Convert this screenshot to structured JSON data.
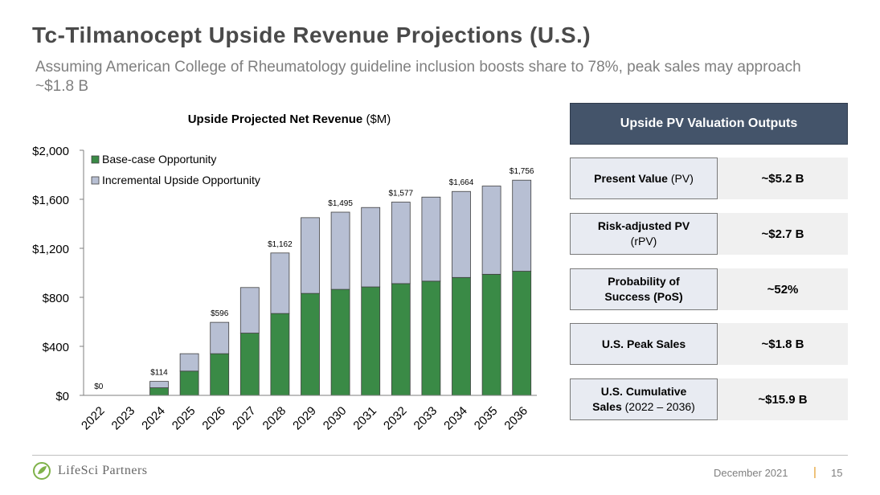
{
  "slide": {
    "title": "Tc-Tilmanocept Upside Revenue Projections (U.S.)",
    "subtitle": "Assuming American College of Rheumatology guideline inclusion boosts share to 78%, peak sales may approach ~$1.8 B"
  },
  "chart_data": {
    "type": "bar",
    "stacked": true,
    "title_bold": "Upside Projected Net Revenue",
    "title_unit": " ($M)",
    "categories": [
      "2022",
      "2023",
      "2024",
      "2025",
      "2026",
      "2027",
      "2028",
      "2029",
      "2030",
      "2031",
      "2032",
      "2033",
      "2034",
      "2035",
      "2036"
    ],
    "series": [
      {
        "name": "Base-case Opportunity",
        "color": "#3a8a46",
        "values": [
          0,
          0,
          62,
          198,
          340,
          508,
          668,
          832,
          865,
          885,
          912,
          932,
          962,
          988,
          1013
        ]
      },
      {
        "name": "Incremental Upside Opportunity",
        "color": "#b7bfd3",
        "values": [
          0,
          0,
          52,
          142,
          256,
          372,
          494,
          618,
          630,
          648,
          665,
          686,
          702,
          720,
          743
        ]
      }
    ],
    "totals": [
      0,
      0,
      114,
      340,
      596,
      880,
      1162,
      1450,
      1495,
      1533,
      1577,
      1618,
      1664,
      1708,
      1756
    ],
    "data_labels": [
      {
        "category": "2022",
        "text": "$0"
      },
      {
        "category": "2024",
        "text": "$114"
      },
      {
        "category": "2026",
        "text": "$596"
      },
      {
        "category": "2028",
        "text": "$1,162"
      },
      {
        "category": "2030",
        "text": "$1,495"
      },
      {
        "category": "2032",
        "text": "$1,577"
      },
      {
        "category": "2034",
        "text": "$1,664"
      },
      {
        "category": "2036",
        "text": "$1,756"
      }
    ],
    "yticks": [
      {
        "value": 0,
        "label": "$0"
      },
      {
        "value": 400,
        "label": "$400"
      },
      {
        "value": 800,
        "label": "$800"
      },
      {
        "value": 1200,
        "label": "$1,200"
      },
      {
        "value": 1600,
        "label": "$1,600"
      },
      {
        "value": 2000,
        "label": "$2,000"
      }
    ],
    "ylim": [
      0,
      2000
    ],
    "legend_position": "top-left",
    "grid": false
  },
  "valuation": {
    "header": "Upside PV Valuation Outputs",
    "rows": [
      {
        "label_bold": "Present Value",
        "label_rest": " (PV)",
        "value": "~$5.2 B"
      },
      {
        "label_bold": "Risk-adjusted PV",
        "label_line2": "(rPV)",
        "value": "~$2.7 B"
      },
      {
        "label_bold": "Probability of",
        "label_line2_bold": "Success (PoS)",
        "value": "~52%"
      },
      {
        "label_bold": "U.S. Peak Sales",
        "value": "~$1.8 B"
      },
      {
        "label_bold": "U.S. Cumulative",
        "label_line2_bold": "Sales",
        "label_line2_rest": " (2022 – 2036)",
        "value": "~$15.9 B"
      }
    ]
  },
  "footer": {
    "logo_text": "LifeSci Partners",
    "date": "December 2021",
    "separator": "|",
    "page": "15"
  }
}
